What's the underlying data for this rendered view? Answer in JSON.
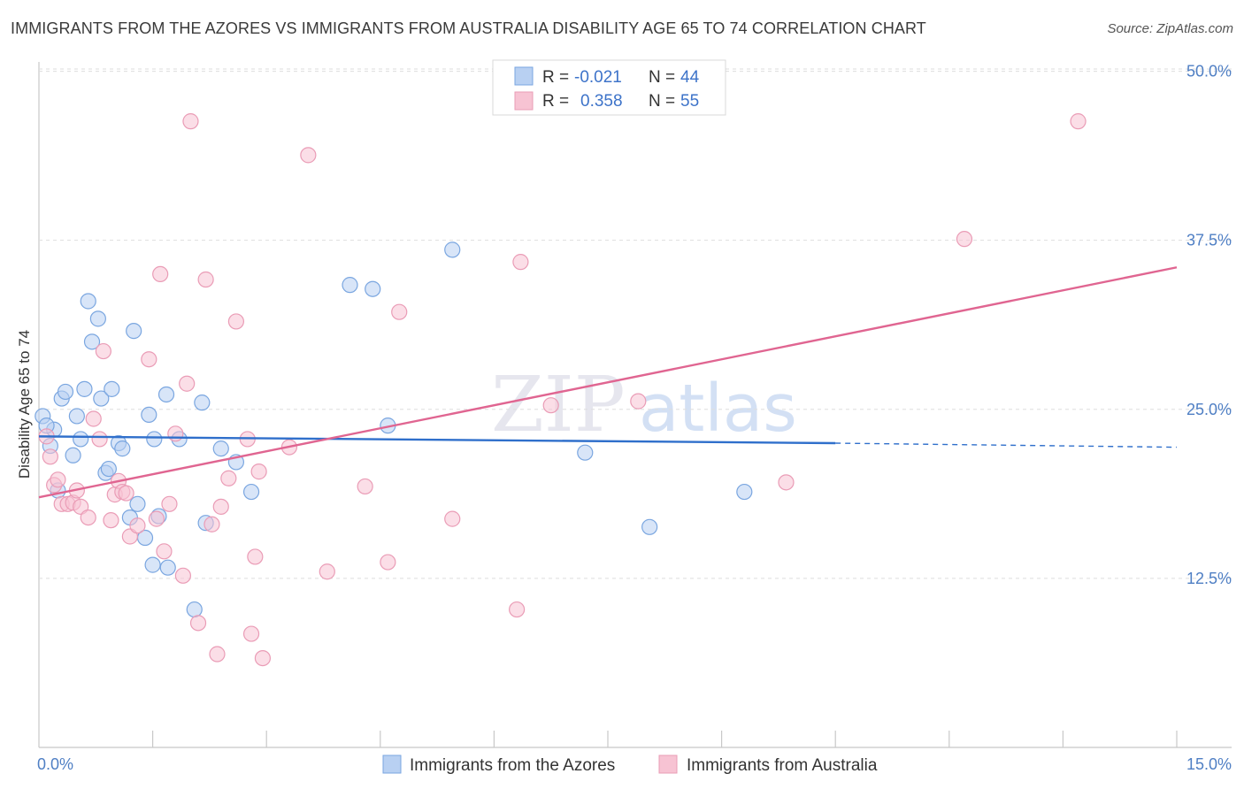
{
  "header": {
    "title": "IMMIGRANTS FROM THE AZORES VS IMMIGRANTS FROM AUSTRALIA DISABILITY AGE 65 TO 74 CORRELATION CHART",
    "source": "Source: ZipAtlas.com"
  },
  "watermark": {
    "part1": "ZIP",
    "part2": "atlas"
  },
  "legend": {
    "rows": [
      {
        "r_label": "R =",
        "r_value": "-0.021",
        "n_label": "N =",
        "n_value": "44"
      },
      {
        "r_label": "R =",
        "r_value": "0.358",
        "n_label": "N =",
        "n_value": "55"
      }
    ]
  },
  "colors": {
    "azores_fill": "#b8d0f2",
    "azores_stroke": "#7aa6e0",
    "azores_line": "#2f6fcb",
    "australia_fill": "#f7c3d3",
    "australia_stroke": "#ea9cb6",
    "australia_line": "#e06591"
  },
  "chart_data": {
    "type": "scatter",
    "title": "IMMIGRANTS FROM THE AZORES VS IMMIGRANTS FROM AUSTRALIA DISABILITY AGE 65 TO 74 CORRELATION CHART",
    "xlabel": "",
    "ylabel": "Disability Age 65 to 74",
    "xlim": [
      0,
      15
    ],
    "ylim": [
      0,
      52
    ],
    "x_tick_labels": [
      "0.0%",
      "15.0%"
    ],
    "y_ticks": [
      12.5,
      25.0,
      37.5,
      50.0
    ],
    "y_tick_labels": [
      "12.5%",
      "25.0%",
      "37.5%",
      "50.0%"
    ],
    "grid": true,
    "legend_position": "top-center",
    "series": [
      {
        "name": "Immigrants from the Azores",
        "R": -0.021,
        "N": 44,
        "trend": {
          "x": [
            0,
            10.5
          ],
          "y": [
            23.0,
            22.5
          ],
          "dashed_to_x": 15,
          "dashed_y": 22.2
        },
        "points": [
          [
            0.05,
            24.5
          ],
          [
            0.15,
            22.3
          ],
          [
            0.2,
            23.5
          ],
          [
            0.25,
            19.0
          ],
          [
            0.3,
            25.8
          ],
          [
            0.35,
            26.3
          ],
          [
            0.45,
            21.6
          ],
          [
            0.5,
            24.5
          ],
          [
            0.55,
            22.8
          ],
          [
            0.6,
            26.5
          ],
          [
            0.65,
            33.0
          ],
          [
            0.7,
            30.0
          ],
          [
            0.78,
            31.7
          ],
          [
            0.82,
            25.8
          ],
          [
            0.88,
            20.3
          ],
          [
            0.92,
            20.6
          ],
          [
            0.96,
            26.5
          ],
          [
            1.05,
            22.5
          ],
          [
            1.1,
            22.1
          ],
          [
            1.2,
            17.0
          ],
          [
            1.25,
            30.8
          ],
          [
            1.3,
            18.0
          ],
          [
            1.4,
            15.5
          ],
          [
            1.45,
            24.6
          ],
          [
            1.5,
            13.5
          ],
          [
            1.52,
            22.8
          ],
          [
            1.58,
            17.1
          ],
          [
            1.68,
            26.1
          ],
          [
            1.7,
            13.3
          ],
          [
            1.85,
            22.8
          ],
          [
            2.05,
            10.2
          ],
          [
            2.15,
            25.5
          ],
          [
            2.2,
            16.6
          ],
          [
            2.4,
            22.1
          ],
          [
            2.6,
            21.1
          ],
          [
            2.8,
            18.9
          ],
          [
            4.1,
            34.2
          ],
          [
            4.4,
            33.9
          ],
          [
            4.6,
            23.8
          ],
          [
            5.45,
            36.8
          ],
          [
            7.2,
            21.8
          ],
          [
            8.05,
            16.3
          ],
          [
            9.3,
            18.9
          ],
          [
            0.1,
            23.8
          ]
        ]
      },
      {
        "name": "Immigrants from Australia",
        "R": 0.358,
        "N": 55,
        "trend": {
          "x": [
            0,
            15
          ],
          "y": [
            18.5,
            35.5
          ]
        },
        "points": [
          [
            0.1,
            23.0
          ],
          [
            0.15,
            21.5
          ],
          [
            0.2,
            19.4
          ],
          [
            0.25,
            19.8
          ],
          [
            0.3,
            18.0
          ],
          [
            0.38,
            18.0
          ],
          [
            0.45,
            18.1
          ],
          [
            0.5,
            19.0
          ],
          [
            0.55,
            17.8
          ],
          [
            0.65,
            17.0
          ],
          [
            0.72,
            24.3
          ],
          [
            0.8,
            22.8
          ],
          [
            0.85,
            29.3
          ],
          [
            0.95,
            16.8
          ],
          [
            1.0,
            18.7
          ],
          [
            1.05,
            19.7
          ],
          [
            1.1,
            18.9
          ],
          [
            1.15,
            18.8
          ],
          [
            1.2,
            15.6
          ],
          [
            1.3,
            16.4
          ],
          [
            1.45,
            28.7
          ],
          [
            1.55,
            16.9
          ],
          [
            1.6,
            35.0
          ],
          [
            1.65,
            14.5
          ],
          [
            1.72,
            18.0
          ],
          [
            1.8,
            23.2
          ],
          [
            1.9,
            12.7
          ],
          [
            1.95,
            26.9
          ],
          [
            2.0,
            46.3
          ],
          [
            2.1,
            9.2
          ],
          [
            2.2,
            34.6
          ],
          [
            2.28,
            16.5
          ],
          [
            2.35,
            6.9
          ],
          [
            2.4,
            17.8
          ],
          [
            2.5,
            19.9
          ],
          [
            2.6,
            31.5
          ],
          [
            2.75,
            22.8
          ],
          [
            2.8,
            8.4
          ],
          [
            2.85,
            14.1
          ],
          [
            2.9,
            20.4
          ],
          [
            2.95,
            6.6
          ],
          [
            3.3,
            22.2
          ],
          [
            3.55,
            43.8
          ],
          [
            3.8,
            13.0
          ],
          [
            4.3,
            19.3
          ],
          [
            4.6,
            13.7
          ],
          [
            4.75,
            32.2
          ],
          [
            5.45,
            16.9
          ],
          [
            6.3,
            10.2
          ],
          [
            6.35,
            35.9
          ],
          [
            6.75,
            25.3
          ],
          [
            7.9,
            25.6
          ],
          [
            9.85,
            19.6
          ],
          [
            12.2,
            37.6
          ],
          [
            13.7,
            46.3
          ]
        ]
      }
    ]
  },
  "bottom_legend": {
    "items": [
      {
        "label": "Immigrants from the Azores"
      },
      {
        "label": "Immigrants from Australia"
      }
    ]
  }
}
